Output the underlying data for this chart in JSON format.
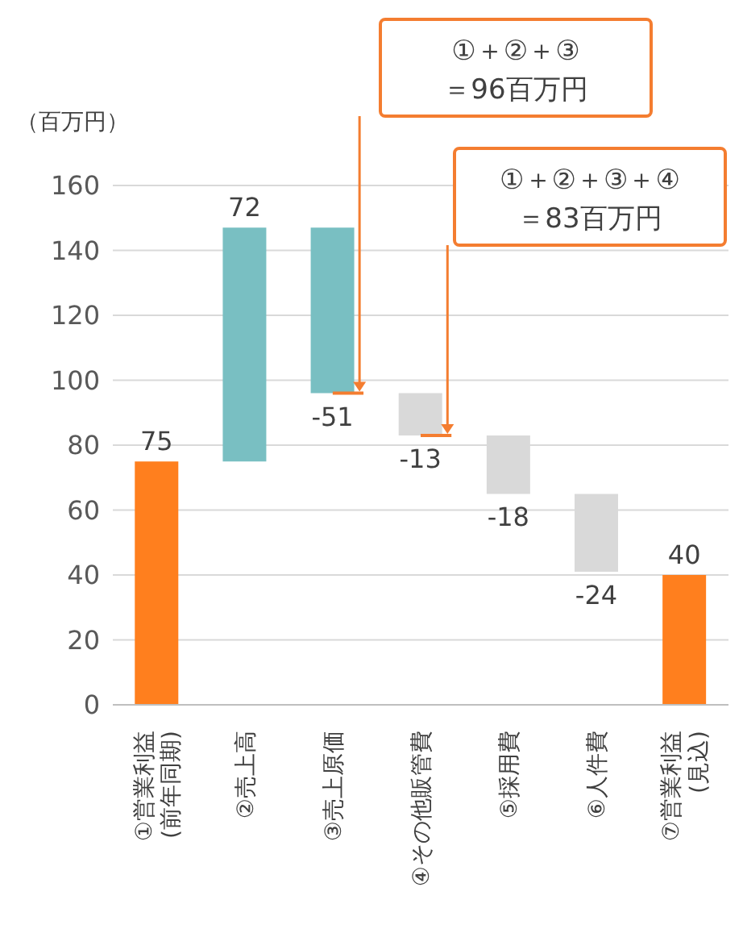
{
  "chart_data": {
    "type": "bar",
    "categories": [
      "①営業利益\n(前年同期)",
      "②売上高",
      "③売上原価",
      "④その他販管費",
      "⑤採用費",
      "⑥人件費",
      "⑦営業利益\n(見込)"
    ],
    "values": [
      75,
      72,
      -51,
      -13,
      -18,
      -24,
      40
    ],
    "base": [
      0,
      75,
      147,
      96,
      83,
      65,
      0
    ],
    "colors": [
      "#ff7f1e",
      "#79bfc2",
      "#79bfc2",
      "#d9d9d9",
      "#d9d9d9",
      "#d9d9d9",
      "#ff7f1e"
    ],
    "ylabel": "（百万円）",
    "ylim": [
      0,
      160
    ],
    "yticks": [
      0,
      20,
      40,
      60,
      80,
      100,
      120,
      140,
      160
    ],
    "grid": "y",
    "data_labels": true,
    "legend": false,
    "annotations": [
      "①＋②＋③\n＝96百万円",
      "①＋②＋③＋④\n＝83百万円"
    ]
  }
}
